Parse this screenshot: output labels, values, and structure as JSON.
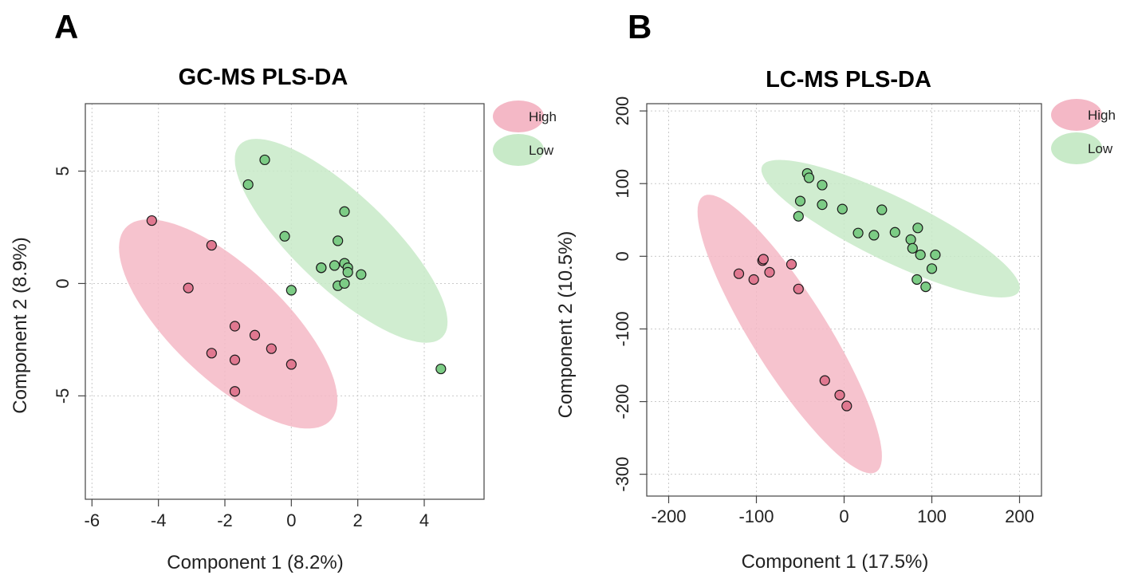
{
  "colors": {
    "high_ellipse": "#f4b8c6",
    "low_ellipse": "#c8eac8",
    "high_point": "#e07890",
    "low_point": "#7ccc85"
  },
  "chart_data": [
    {
      "type": "scatter",
      "panel": "A",
      "title": "GC-MS PLS-DA",
      "xlabel": "Component 1 (8.2%)",
      "ylabel": "Component 2 (8.9%)",
      "xlim": [
        -6.2,
        5.8
      ],
      "ylim": [
        -9.6,
        8.0
      ],
      "xticks": [
        -6,
        -4,
        -2,
        0,
        2,
        4
      ],
      "yticks": [
        5,
        0,
        -5
      ],
      "grid": true,
      "legend": [
        "High",
        "Low"
      ],
      "legend_position": "outside-top-right",
      "series": [
        {
          "name": "High",
          "x": [
            -4.2,
            -2.4,
            -3.1,
            -1.7,
            -1.1,
            -0.6,
            -2.4,
            -1.7,
            0.0,
            -1.7
          ],
          "y": [
            2.8,
            1.7,
            -0.2,
            -1.9,
            -2.3,
            -2.9,
            -3.1,
            -3.4,
            -3.6,
            -4.8
          ],
          "ellipse": {
            "cx": -1.9,
            "cy": -1.8,
            "rx": 5.35,
            "ry": 1.96,
            "angle_deg": -58
          }
        },
        {
          "name": "Low",
          "x": [
            -0.8,
            -1.3,
            1.6,
            -0.2,
            1.4,
            0.9,
            0.9,
            1.3,
            1.6,
            1.7,
            1.7,
            2.1,
            0.0,
            1.4,
            1.6,
            4.5
          ],
          "y": [
            5.5,
            4.4,
            3.2,
            2.1,
            1.9,
            0.7,
            0.7,
            0.8,
            0.9,
            0.7,
            0.5,
            0.4,
            -0.3,
            -0.1,
            0.0,
            -3.8
          ],
          "ellipse": {
            "cx": 1.5,
            "cy": 1.9,
            "rx": 5.3,
            "ry": 1.65,
            "angle_deg": -57
          }
        }
      ]
    },
    {
      "type": "scatter",
      "panel": "B",
      "title": "LC-MS PLS-DA",
      "xlabel": "Component 1 (17.5%)",
      "ylabel": "Component 2 (10.5%)",
      "xlim": [
        -225,
        225
      ],
      "ylim": [
        -330,
        210
      ],
      "xticks": [
        -200,
        -100,
        0,
        100,
        200
      ],
      "yticks": [
        200,
        100,
        0,
        -100,
        -200,
        -300
      ],
      "grid": true,
      "legend": [
        "High",
        "Low"
      ],
      "legend_position": "outside-top-right",
      "series": [
        {
          "name": "High",
          "x": [
            -120,
            -103,
            -93,
            -92,
            -85,
            -60,
            -52,
            -22,
            -5,
            3
          ],
          "y": [
            -24,
            -32,
            -6,
            -4,
            -22,
            -11,
            -45,
            -171,
            -191,
            -206
          ],
          "ellipse": {
            "cx": -62,
            "cy": -107,
            "rx": 214,
            "ry": 45,
            "angle_deg": -63
          }
        },
        {
          "name": "Low",
          "x": [
            -42,
            -40,
            -25,
            -50,
            -25,
            -52,
            -2,
            43,
            16,
            34,
            58,
            76,
            78,
            84,
            87,
            104,
            100,
            83,
            93
          ],
          "y": [
            114,
            108,
            98,
            76,
            71,
            55,
            65,
            64,
            32,
            29,
            33,
            23,
            11,
            39,
            2,
            2,
            -17,
            -32,
            -42
          ],
          "ellipse": {
            "cx": 53,
            "cy": 38,
            "rx": 170,
            "ry": 42,
            "angle_deg": -31
          }
        }
      ]
    }
  ]
}
